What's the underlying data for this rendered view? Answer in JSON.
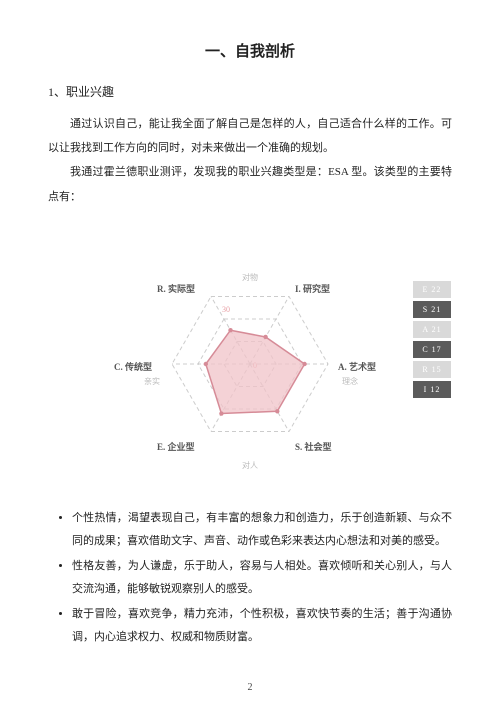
{
  "title": "一、自我剖析",
  "subhead": "1、职业兴趣",
  "para1": "通过认识自己，能让我全面了解自己是怎样的人，自己适合什么样的工作。可以让我找到工作方向的同时，对未来做出一个准确的规划。",
  "para2": "我通过霍兰德职业测评，发现我的职业兴趣类型是：ESA 型。该类型的主要特点有：",
  "chart": {
    "type": "radar",
    "rings": 3,
    "ring_step": 10,
    "max": 30,
    "ring_labels": [
      "0",
      "30"
    ],
    "line_color": "#cccccc",
    "dash": "4 3",
    "fill_color": "#f0c3c8",
    "fill_opacity": 0.75,
    "stroke_color": "#d68b97",
    "bg": "#ffffff",
    "center_label_color": "#e8a0a5",
    "axes": [
      {
        "key": "I",
        "label": "I. 研究型",
        "sub": ""
      },
      {
        "key": "A",
        "label": "A. 艺术型",
        "sub": "理念"
      },
      {
        "key": "S",
        "label": "S. 社会型",
        "sub": "对人"
      },
      {
        "key": "E",
        "label": "E. 企业型",
        "sub": ""
      },
      {
        "key": "C",
        "label": "C. 传统型",
        "sub": "亲实"
      },
      {
        "key": "R",
        "label": "R. 实际型",
        "sub": "对物"
      }
    ],
    "values": [
      12,
      21,
      21,
      22,
      17,
      15
    ]
  },
  "legend": [
    {
      "label": "E",
      "value": "22",
      "bg": "#d9d9d9",
      "fg": "#ffffff",
      "hl": false
    },
    {
      "label": "S",
      "value": "21",
      "bg": "#5b5b5b",
      "fg": "#ffffff",
      "hl": true
    },
    {
      "label": "A",
      "value": "21",
      "bg": "#d9d9d9",
      "fg": "#ffffff",
      "hl": false
    },
    {
      "label": "C",
      "value": "17",
      "bg": "#5b5b5b",
      "fg": "#ffffff",
      "hl": true
    },
    {
      "label": "R",
      "value": "15",
      "bg": "#d9d9d9",
      "fg": "#ffffff",
      "hl": false
    },
    {
      "label": "I",
      "value": "12",
      "bg": "#5b5b5b",
      "fg": "#ffffff",
      "hl": true
    }
  ],
  "bullets": [
    "个性热情，渴望表现自己，有丰富的想象力和创造力，乐于创造新颖、与众不同的成果；喜欢借助文字、声音、动作或色彩来表达内心想法和对美的感受。",
    "性格友善，为人谦虚，乐于助人，容易与人相处。喜欢倾听和关心别人，与人交流沟通，能够敏锐观察别人的感受。",
    "敢于冒险，喜欢竞争，精力充沛，个性积极，喜欢快节奏的生活；善于沟通协调，内心追求权力、权威和物质财富。"
  ],
  "page": "2"
}
